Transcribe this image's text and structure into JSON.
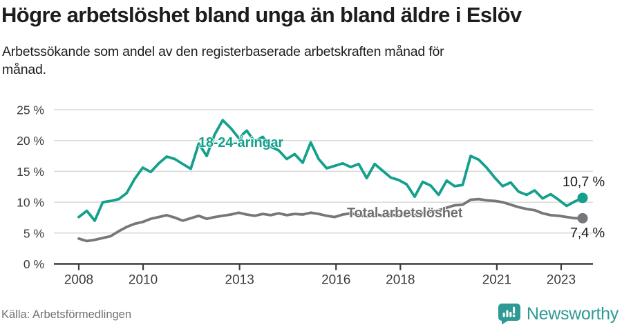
{
  "header": {
    "title": "Högre arbetslöshet bland unga än bland äldre i Eslöv",
    "subtitle_lines": [
      "Arbetssökande som andel av den registerbaserade arbetskraften månad för",
      "månad."
    ]
  },
  "footer": {
    "source": "Källa: Arbetsförmedlingen",
    "brand": "Newsworthy"
  },
  "colors": {
    "accent_teal": "#14a08c",
    "line_gray": "#77777b",
    "grid": "#d9d9d9",
    "axis": "#3c3c3c",
    "axis_text": "#3c3c3c",
    "title_text": "#1d1d1b",
    "source_text": "#717171",
    "brand_teal": "#2e9a96"
  },
  "chart_data": {
    "type": "line",
    "title": "Högre arbetslöshet bland unga än bland äldre i Eslöv",
    "subtitle": "Arbetssökande som andel av den registerbaserade arbetskraften månad för månad.",
    "xlabel": "",
    "ylabel": "",
    "grid": "horizontal",
    "legend_position": "inline-labels",
    "ylim": [
      0,
      25
    ],
    "x_range": [
      2008.0,
      2023.75
    ],
    "y_ticks": [
      {
        "value": 0,
        "label": "0 %"
      },
      {
        "value": 5,
        "label": "5 %"
      },
      {
        "value": 10,
        "label": "10 %"
      },
      {
        "value": 15,
        "label": "15 %"
      },
      {
        "value": 20,
        "label": "20 %"
      },
      {
        "value": 25,
        "label": "25 %"
      }
    ],
    "x_ticks": [
      {
        "value": 2008,
        "label": "2008"
      },
      {
        "value": 2010,
        "label": "2010"
      },
      {
        "value": 2013,
        "label": "2013"
      },
      {
        "value": 2016,
        "label": "2016"
      },
      {
        "value": 2018,
        "label": "2018"
      },
      {
        "value": 2021,
        "label": "2021"
      },
      {
        "value": 2023,
        "label": "2023"
      }
    ],
    "series": [
      {
        "name": "18-24-åringar",
        "color": "#14a08c",
        "end_label": "10,7 %",
        "end_value": 10.7,
        "x_step_years": 0.25,
        "values": [
          7.6,
          8.6,
          7.0,
          10.0,
          10.2,
          10.5,
          11.5,
          13.8,
          15.6,
          14.9,
          16.3,
          17.4,
          17.0,
          16.2,
          15.4,
          19.5,
          17.5,
          21.0,
          23.3,
          22.0,
          20.4,
          21.6,
          19.8,
          20.6,
          19.0,
          18.4,
          17.0,
          17.8,
          16.4,
          19.7,
          17.0,
          15.5,
          15.9,
          16.3,
          15.7,
          16.2,
          13.9,
          16.2,
          15.1,
          14.0,
          13.6,
          12.9,
          10.9,
          13.3,
          12.7,
          11.2,
          13.5,
          12.6,
          12.8,
          17.5,
          16.9,
          15.6,
          14.0,
          12.6,
          13.2,
          11.7,
          11.2,
          11.9,
          10.6,
          11.3,
          10.4,
          9.4,
          10.1,
          10.7
        ]
      },
      {
        "name": "Total arbetslöshet",
        "color": "#77777b",
        "end_label": "7,4 %",
        "end_value": 7.4,
        "x_step_years": 0.25,
        "values": [
          4.1,
          3.7,
          3.9,
          4.2,
          4.5,
          5.3,
          6.0,
          6.5,
          6.8,
          7.3,
          7.6,
          7.9,
          7.5,
          7.0,
          7.4,
          7.8,
          7.3,
          7.6,
          7.8,
          8.0,
          8.3,
          8.0,
          7.8,
          8.1,
          7.9,
          8.2,
          7.9,
          8.1,
          8.0,
          8.3,
          8.1,
          7.8,
          7.6,
          8.0,
          8.2,
          7.9,
          7.7,
          8.1,
          7.8,
          8.0,
          7.8,
          8.1,
          7.9,
          8.2,
          8.4,
          8.7,
          9.1,
          9.5,
          9.6,
          10.4,
          10.5,
          10.3,
          10.2,
          10.0,
          9.6,
          9.2,
          8.9,
          8.7,
          8.2,
          7.9,
          7.8,
          7.6,
          7.4,
          7.4
        ]
      }
    ]
  }
}
